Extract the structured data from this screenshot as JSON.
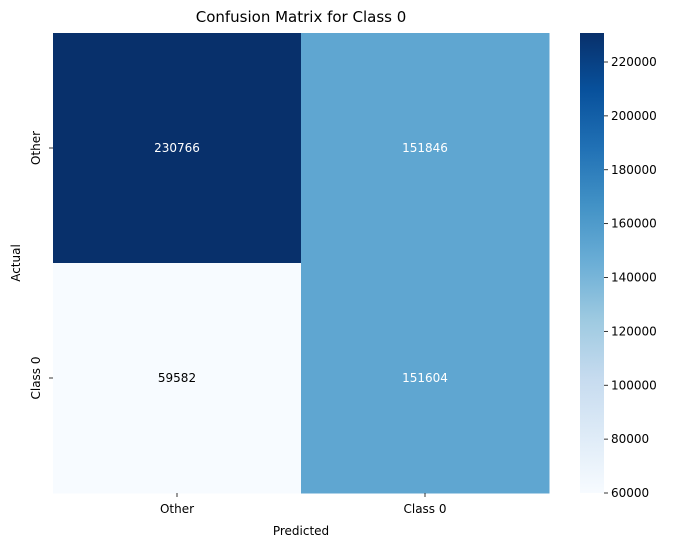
{
  "chart_data": {
    "type": "heatmap",
    "title": "Confusion Matrix for Class 0",
    "xlabel": "Predicted",
    "ylabel": "Actual",
    "x_categories": [
      "Other",
      "Class 0"
    ],
    "y_categories": [
      "Other",
      "Class 0"
    ],
    "values": [
      [
        230766,
        151846
      ],
      [
        59582,
        151604
      ]
    ],
    "colormap": "Blues",
    "colorbar": {
      "min": 60000,
      "max": 230766,
      "ticks": [
        60000,
        80000,
        100000,
        120000,
        140000,
        160000,
        180000,
        200000,
        220000
      ]
    },
    "colors": {
      "low": "#f7fbff",
      "high": "#08306b",
      "text_on_dark": "#ffffff",
      "text_on_light": "#000000"
    }
  }
}
